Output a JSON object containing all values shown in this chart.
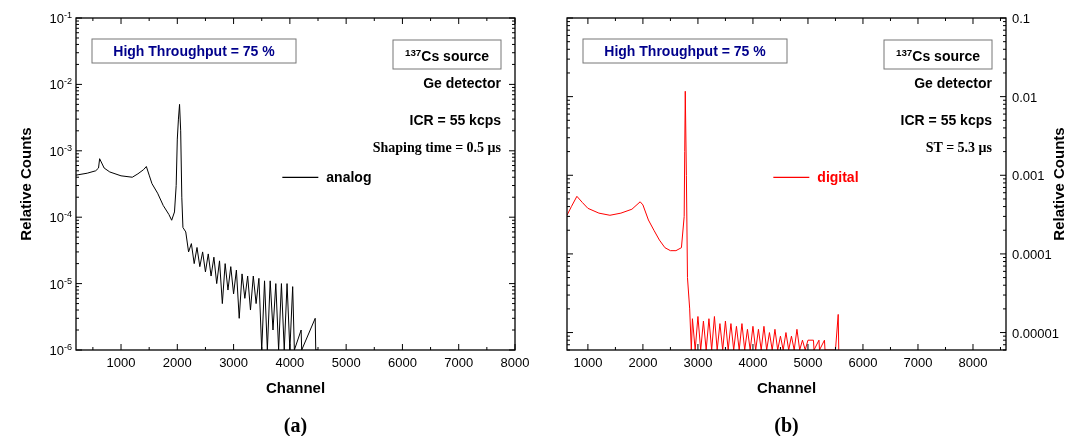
{
  "chart_data": [
    {
      "type": "line",
      "title": "(a)",
      "xlabel": "Channel",
      "ylabel": "Relative Counts",
      "log": "y",
      "legend": "right",
      "xlim": [
        200,
        8000
      ],
      "xticks": [
        1000,
        2000,
        3000,
        4000,
        5000,
        6000,
        7000,
        8000
      ],
      "ylim": [
        1e-06,
        0.1
      ],
      "yticks": [
        {
          "value": 1e-06,
          "label": "10$^{-6}$"
        },
        {
          "value": 1e-05,
          "label": "10$^{-5}$"
        },
        {
          "value": 0.0001,
          "label": "10$^{-4}$"
        },
        {
          "value": 0.001,
          "label": "10$^{-3}$"
        },
        {
          "value": 0.01,
          "label": "10$^{-2}$"
        },
        {
          "value": 0.1,
          "label": "10$^{-1}$"
        }
      ],
      "annotations": [
        "High Throughput = 75 %",
        "$^{137}$Cs source",
        "Ge detector",
        "ICR = 55 kcps",
        "Shaping time = 0.5 μs"
      ],
      "series": [
        {
          "name": "analog",
          "color": "#000000",
          "x": [
            200,
            400,
            550,
            600,
            620,
            700,
            800,
            1000,
            1200,
            1300,
            1400,
            1450,
            1500,
            1550,
            1650,
            1750,
            1850,
            1900,
            1950,
            1980,
            2000,
            2020,
            2040,
            2060,
            2080,
            2100,
            2150,
            2200,
            2250,
            2300,
            2350,
            2400,
            2450,
            2500,
            2550,
            2600,
            2650,
            2700,
            2750,
            2800,
            2850,
            2900,
            2950,
            3000,
            3050,
            3100,
            3150,
            3200,
            3250,
            3300,
            3350,
            3400,
            3450,
            3500,
            3550,
            3600,
            3650,
            3700,
            3750,
            3800,
            3850,
            3900,
            3950,
            4000,
            4050,
            4080,
            4200,
            4210,
            4450,
            4460,
            4500
          ],
          "values": [
            0.00043,
            0.00046,
            0.0005,
            0.00055,
            0.00076,
            0.00055,
            0.00048,
            0.00042,
            0.0004,
            0.00045,
            0.00052,
            0.00058,
            0.00043,
            0.00032,
            0.00023,
            0.00015,
            0.00011,
            9e-05,
            0.00012,
            0.0003,
            0.0015,
            0.003,
            0.005,
            0.002,
            0.0002,
            7e-05,
            6e-05,
            3e-05,
            4e-05,
            2e-05,
            3.5e-05,
            1.8e-05,
            3e-05,
            1.5e-05,
            2.8e-05,
            1.3e-05,
            2.5e-05,
            1e-05,
            2.2e-05,
            5e-06,
            2e-05,
            8e-06,
            1.8e-05,
            7e-06,
            1.6e-05,
            3e-06,
            1.4e-05,
            6e-06,
            1.3e-05,
            4e-06,
            1.3e-05,
            5e-06,
            1.2e-05,
            1e-06,
            1.1e-05,
            1e-06,
            1.1e-05,
            2e-06,
            1e-05,
            1e-06,
            1e-05,
            1e-06,
            1e-05,
            1e-06,
            9e-06,
            1e-06,
            2e-06,
            1e-06,
            3e-06,
            1e-06,
            1e-06
          ]
        }
      ]
    },
    {
      "type": "line",
      "title": "(b)",
      "xlabel": "Channel",
      "y2label": "Relative Counts",
      "legend": "right",
      "log": "y2",
      "xlim": [
        620,
        8600
      ],
      "xticks": [
        1000,
        2000,
        3000,
        4000,
        5000,
        6000,
        7000,
        8000
      ],
      "y2lim": [
        6e-06,
        0.1
      ],
      "y2ticks": [
        {
          "value": 1e-05,
          "label": "0.00001"
        },
        0.0001,
        0.001,
        0.01,
        0.1
      ],
      "annotations": [
        "High Throughput = 75 %",
        "$^{137}$Cs source",
        "Ge detector",
        "ICR = 55 kcps",
        "ST = 5.3 μs"
      ],
      "series": [
        {
          "name": "digital",
          "color": "#ff0000",
          "axis": "y2",
          "x": [
            620,
            700,
            800,
            900,
            1000,
            1200,
            1400,
            1600,
            1800,
            1950,
            2000,
            2100,
            2200,
            2300,
            2400,
            2500,
            2600,
            2700,
            2750,
            2760,
            2770,
            2790,
            2810,
            2850,
            2880,
            2900,
            2950,
            3000,
            3050,
            3100,
            3150,
            3200,
            3250,
            3300,
            3350,
            3400,
            3450,
            3500,
            3550,
            3600,
            3650,
            3700,
            3750,
            3800,
            3850,
            3900,
            3950,
            4000,
            4050,
            4100,
            4150,
            4200,
            4250,
            4300,
            4350,
            4400,
            4450,
            4500,
            4550,
            4600,
            4650,
            4700,
            4750,
            4800,
            4850,
            4900,
            4950,
            5000,
            5100,
            5110,
            5200,
            5210,
            5300,
            5310,
            5500,
            5550,
            5560
          ],
          "values": [
            0.00031,
            0.0004,
            0.00054,
            0.00045,
            0.00038,
            0.00033,
            0.00031,
            0.00033,
            0.00037,
            0.00046,
            0.00042,
            0.00027,
            0.0002,
            0.00015,
            0.00012,
            0.00011,
            0.00011,
            0.00012,
            0.0003,
            0.002,
            0.0117,
            0.001,
            5e-05,
            2e-05,
            6e-06,
            1.5e-05,
            6e-06,
            1.6e-05,
            6e-06,
            1.4e-05,
            6e-06,
            1.5e-05,
            6e-06,
            1.6e-05,
            6e-06,
            1.3e-05,
            6e-06,
            1.4e-05,
            6e-06,
            1.3e-05,
            6e-06,
            1.2e-05,
            6e-06,
            1.3e-05,
            6e-06,
            1.1e-05,
            6e-06,
            1.2e-05,
            6e-06,
            1.1e-05,
            6e-06,
            1.2e-05,
            6e-06,
            1e-05,
            6e-06,
            1.1e-05,
            6e-06,
            9e-06,
            6e-06,
            1e-05,
            6e-06,
            9e-06,
            6e-06,
            1.1e-05,
            6e-06,
            8e-06,
            6e-06,
            8e-06,
            8e-06,
            6e-06,
            8e-06,
            6e-06,
            8e-06,
            6e-06,
            6e-06,
            1.7e-05,
            6e-06
          ]
        }
      ]
    }
  ]
}
